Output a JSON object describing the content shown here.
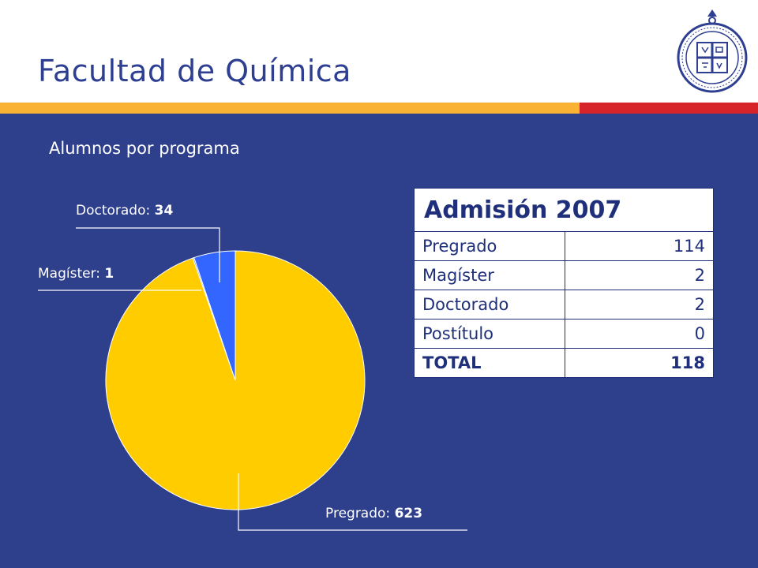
{
  "slide": {
    "title": "Facultad de Química",
    "subtitle": "Alumnos por programa",
    "logo": "seal-icon",
    "colors": {
      "title": "#2e3f91",
      "background": "#2e3f8c",
      "stripe_orange": "#f9b233",
      "stripe_red": "#d7242b"
    }
  },
  "chart_data": [
    {
      "type": "pie",
      "title": "",
      "categories": [
        "Pregrado",
        "Magíster",
        "Doctorado"
      ],
      "values": [
        623,
        1,
        34
      ],
      "colors": [
        "#ffcc00",
        "#3366ff",
        "#3366ff"
      ],
      "labels": [
        {
          "name": "Pregrado",
          "value": "623"
        },
        {
          "name": "Magíster",
          "value": "1"
        },
        {
          "name": "Doctorado",
          "value": "34"
        }
      ]
    },
    {
      "type": "table",
      "title": "Admisión 2007",
      "rows": [
        {
          "label": "Pregrado",
          "value": "114"
        },
        {
          "label": "Magíster",
          "value": "2"
        },
        {
          "label": "Doctorado",
          "value": "2"
        },
        {
          "label": "Postítulo",
          "value": "0"
        }
      ],
      "total": {
        "label": "TOTAL",
        "value": "118"
      }
    }
  ]
}
